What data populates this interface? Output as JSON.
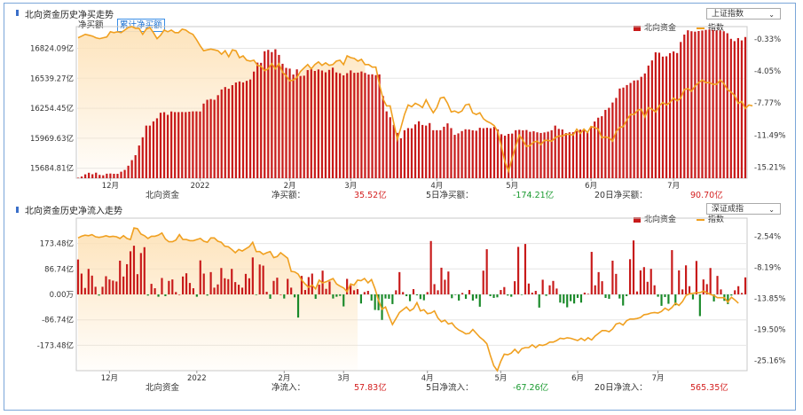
{
  "panel1": {
    "title": "北向资金历史净买走势",
    "tabs": [
      "净买额",
      "累计净买额"
    ],
    "active_tab": 1,
    "selector": "上证指数",
    "legend": [
      "北向资金",
      "指数"
    ],
    "stats": {
      "name": "北向资金",
      "l1": "净买额：",
      "v1": "35.52亿",
      "l2": "5日净买额：",
      "v2": "-174.21亿",
      "l3": "20日净买额：",
      "v3": "90.70亿"
    }
  },
  "panel2": {
    "title": "北向资金历史净流入走势",
    "selector": "深证成指",
    "legend": [
      "北向资金",
      "指数"
    ],
    "stats": {
      "name": "北向资金",
      "l1": "净流入：",
      "v1": "57.83亿",
      "l2": "5日净流入：",
      "v2": "-67.26亿",
      "l3": "20日净流入：",
      "v3": "565.35亿"
    }
  },
  "colors": {
    "bar": "#c81a1a",
    "bar_negative": "#1a8a2a",
    "index_line": "#f0a020",
    "area": "#fde2b8"
  },
  "chart_data": [
    {
      "type": "bar",
      "title": "北向资金历史净买走势",
      "series_name": "北向资金",
      "left_ticks": [
        "16824.09亿",
        "16539.27亿",
        "16254.45亿",
        "15969.63亿",
        "15684.81亿"
      ],
      "left_tick_values": [
        16824.09,
        16539.27,
        16254.45,
        15969.63,
        15684.81
      ],
      "right_ticks": [
        "-0.33%",
        "-4.05%",
        "-7.77%",
        "-11.49%",
        "-15.21%"
      ],
      "right_tick_values": [
        -0.33,
        -4.05,
        -7.77,
        -11.49,
        -15.21
      ],
      "x_labels": [
        "12月",
        "2022",
        "2月",
        "3月",
        "4月",
        "5月",
        "6月",
        "7月"
      ],
      "x_label_index": [
        9,
        34,
        59,
        76,
        100,
        121,
        143,
        166
      ],
      "ylim": [
        15590,
        17030
      ],
      "y2lim": [
        -16.5,
        1.1
      ],
      "bars": [
        15595,
        15606,
        15627,
        15642,
        15628,
        15643,
        15622,
        15618,
        15633,
        15635,
        15632,
        15632,
        15652,
        15669,
        15709,
        15762,
        15809,
        15901,
        15979,
        16090,
        16090,
        16130,
        16159,
        16212,
        16217,
        16192,
        16224,
        16218,
        16218,
        16219,
        16218,
        16222,
        16225,
        16225,
        16224,
        16299,
        16335,
        16342,
        16335,
        16379,
        16433,
        16456,
        16440,
        16474,
        16499,
        16509,
        16500,
        16515,
        16528,
        16603,
        16688,
        16686,
        16796,
        16809,
        16788,
        16815,
        16761,
        16677,
        16638,
        16631,
        16575,
        16624,
        16561,
        16564,
        16617,
        16626,
        16609,
        16623,
        16613,
        16596,
        16619,
        16640,
        16595,
        16587,
        16567,
        16588,
        16614,
        16591,
        16593,
        16604,
        16590,
        16575,
        16577,
        16569,
        16576,
        16371,
        16225,
        16169,
        16097,
        16021,
        15969,
        16046,
        16066,
        16064,
        16101,
        16131,
        16096,
        16090,
        16114,
        16046,
        16046,
        16046,
        16079,
        16111,
        16066,
        16002,
        16016,
        16038,
        16055,
        16053,
        16045,
        16041,
        16069,
        16065,
        16069,
        16065,
        16078,
        16054,
        16008,
        15994,
        16011,
        16014,
        16046,
        16050,
        16045,
        16048,
        16031,
        16036,
        16026,
        16020,
        16025,
        16032,
        16046,
        16090,
        16059,
        16053,
        16019,
        16026,
        16027,
        16038,
        16052,
        16046,
        16024,
        16081,
        16129,
        16165,
        16179,
        16239,
        16259,
        16309,
        16353,
        16442,
        16451,
        16475,
        16495,
        16518,
        16521,
        16553,
        16585,
        16660,
        16709,
        16786,
        16782,
        16745,
        16748,
        16778,
        16794,
        16779,
        16884,
        16954,
        16995,
        16986,
        16982,
        16988,
        16993,
        16999,
        17003,
        16998,
        16994,
        16993,
        16986,
        16967,
        16914,
        16892,
        16921,
        16899,
        16931
      ],
      "index_line": [
        -0.2,
        0.0,
        0.2,
        0.1,
        0.0,
        -0.2,
        -0.3,
        -0.2,
        -0.1,
        0.5,
        0.4,
        0.5,
        0.4,
        0.7,
        1.0,
        1.1,
        0.9,
        0.9,
        0.2,
        0.8,
        1.0,
        0.4,
        -0.3,
        0.1,
        0.7,
        0.5,
        0.7,
        0.4,
        0.4,
        0.8,
        0.7,
        0.4,
        0.2,
        -0.4,
        -1.1,
        -1.7,
        -1.6,
        -1.5,
        -1.6,
        -1.7,
        -2.1,
        -1.7,
        -2.4,
        -1.6,
        -1.7,
        -2.5,
        -2.3,
        -2.8,
        -2.9,
        -2.8,
        -3.4,
        -3.5,
        -4.0,
        -3.8,
        -3.2,
        -3.8,
        -3.2,
        -4.2,
        -4.6,
        -5.2,
        -5.1,
        -4.8,
        -4.1,
        -3.7,
        -3.3,
        -3.8,
        -3.3,
        -3.0,
        -3.4,
        -3.1,
        -3.4,
        -3.3,
        -2.9,
        -2.8,
        -3.3,
        -2.3,
        -2.5,
        -2.6,
        -2.9,
        -2.7,
        -3.3,
        -3.3,
        -3.6,
        -3.6,
        -5.6,
        -7.3,
        -8.1,
        -8.1,
        -10.1,
        -12.0,
        -10.6,
        -9.1,
        -8.0,
        -8.2,
        -7.8,
        -8.0,
        -8.3,
        -7.4,
        -8.2,
        -8.9,
        -8.3,
        -7.2,
        -7.1,
        -7.8,
        -8.8,
        -8.7,
        -8.9,
        -8.7,
        -8.0,
        -7.9,
        -8.9,
        -9.1,
        -8.9,
        -9.6,
        -9.9,
        -10.1,
        -10.4,
        -11.1,
        -12.8,
        -14.6,
        -15.7,
        -14.2,
        -12.8,
        -11.5,
        -12.1,
        -12.8,
        -12.7,
        -12.3,
        -12.2,
        -12.6,
        -12.1,
        -12.1,
        -12.2,
        -11.8,
        -11.6,
        -11.6,
        -11.4,
        -11.4,
        -11.5,
        -10.8,
        -11.3,
        -10.8,
        -11.2,
        -10.5,
        -10.6,
        -10.8,
        -11.8,
        -11.7,
        -11.8,
        -12.2,
        -11.1,
        -10.6,
        -10.5,
        -9.7,
        -9.1,
        -9.1,
        -8.6,
        -8.5,
        -9.4,
        -8.3,
        -8.5,
        -8.8,
        -8.1,
        -7.7,
        -8.0,
        -7.7,
        -7.2,
        -7.5,
        -7.2,
        -6.2,
        -6.1,
        -6.4,
        -5.8,
        -5.4,
        -5.1,
        -5.4,
        -5.4,
        -5.6,
        -5.6,
        -5.1,
        -5.5,
        -6.2,
        -6.5,
        -6.9,
        -7.8,
        -7.6,
        -8.4,
        -8.0,
        -8.1
      ]
    },
    {
      "type": "bar",
      "title": "北向资金历史净流入走势",
      "series_name": "北向资金",
      "left_ticks": [
        "173.48亿",
        "86.74亿",
        "0.00万",
        "-86.74亿",
        "-173.48亿"
      ],
      "left_tick_values": [
        173.48,
        86.74,
        0.0,
        -86.74,
        -173.48
      ],
      "right_ticks": [
        "-2.54%",
        "-8.19%",
        "-13.85%",
        "-19.50%",
        "-25.16%"
      ],
      "right_tick_values": [
        -2.54,
        -8.19,
        -13.85,
        -19.5,
        -25.16
      ],
      "x_labels": [
        "12月",
        "2022",
        "2月",
        "3月",
        "4月",
        "5月",
        "6月",
        "7月"
      ],
      "x_label_index": [
        9,
        34,
        59,
        76,
        100,
        121,
        143,
        166
      ],
      "ylim": [
        -260,
        260
      ],
      "y2lim": [
        -27.0,
        0.8
      ],
      "bars": [
        119,
        71,
        22,
        87,
        64,
        26,
        -4,
        26,
        62,
        51,
        47,
        44,
        115,
        61,
        103,
        147,
        166,
        69,
        141,
        161,
        -4,
        36,
        21,
        -8,
        56,
        -6,
        46,
        51,
        8,
        0,
        61,
        72,
        39,
        21,
        -8,
        116,
        71,
        -4,
        76,
        23,
        34,
        90,
        55,
        52,
        87,
        42,
        33,
        23,
        70,
        55,
        126,
        -2,
        102,
        98,
        9,
        -15,
        46,
        57,
        0,
        -14,
        53,
        23,
        -10,
        -79,
        63,
        15,
        59,
        71,
        -15,
        33,
        81,
        19,
        44,
        -14,
        -8,
        -5,
        -41,
        53,
        31,
        14,
        18,
        -31,
        8,
        12,
        -21,
        -53,
        -54,
        -87,
        -14,
        -15,
        -33,
        14,
        76,
        8,
        -6,
        -23,
        18,
        -3,
        -16,
        -20,
        8,
        182,
        35,
        14,
        91,
        50,
        78,
        -13,
        -2,
        -21,
        5,
        -15,
        15,
        -21,
        -14,
        -42,
        81,
        154,
        -6,
        -12,
        -10,
        15,
        25,
        -4,
        -8,
        45,
        162,
        -1,
        172,
        37,
        6,
        12,
        -45,
        50,
        -5,
        31,
        46,
        20,
        -28,
        -31,
        -44,
        -23,
        -31,
        -12,
        -28,
        6,
        2,
        145,
        31,
        76,
        45,
        -12,
        -15,
        115,
        70,
        -14,
        -38,
        -6,
        120,
        184,
        10,
        82,
        93,
        43,
        87,
        31,
        -8,
        -39,
        -9,
        -32,
        151,
        -37,
        82,
        17,
        99,
        28,
        -17,
        114,
        -74,
        51,
        35,
        90,
        -24,
        63,
        17,
        -22,
        -33,
        -4,
        14,
        28,
        5,
        58
      ],
      "index_line": [
        -2.8,
        -2.5,
        -2.3,
        -2.4,
        -2.2,
        -2.6,
        -2.7,
        -2.6,
        -2.4,
        -2.6,
        -2.5,
        -2.6,
        -2.9,
        -2.4,
        -2.9,
        -3.1,
        -1.0,
        -1.1,
        -2.1,
        -2.4,
        -2.9,
        -2.5,
        -2.5,
        -2.3,
        -1.9,
        -3.0,
        -3.5,
        -3.5,
        -3.2,
        -2.2,
        -3.1,
        -3.1,
        -3.3,
        -3.3,
        -3.1,
        -2.9,
        -3.4,
        -3.6,
        -2.8,
        -2.8,
        -3.4,
        -3.6,
        -4.3,
        -4.4,
        -4.9,
        -5.5,
        -4.9,
        -5.2,
        -4.8,
        -4.4,
        -3.6,
        -5.3,
        -5.3,
        -5.8,
        -5.5,
        -5.3,
        -6.4,
        -6.2,
        -5.5,
        -6.0,
        -6.5,
        -8.9,
        -9.0,
        -9.4,
        -10.5,
        -11.2,
        -11.8,
        -11.4,
        -12.1,
        -10.5,
        -11.0,
        -10.8,
        -10.5,
        -10.2,
        -11.2,
        -11.6,
        -11.9,
        -12.6,
        -11.2,
        -11.4,
        -10.5,
        -10.6,
        -10.2,
        -11.0,
        -10.4,
        -12.1,
        -14.2,
        -15.8,
        -15.4,
        -17.1,
        -18.6,
        -17.5,
        -16.4,
        -15.9,
        -15.4,
        -16.1,
        -15.7,
        -14.6,
        -16.1,
        -15.9,
        -16.6,
        -16.5,
        -16.1,
        -17.4,
        -18.1,
        -17.8,
        -18.5,
        -18.3,
        -19.1,
        -19.6,
        -19.9,
        -20.3,
        -20.2,
        -19.5,
        -20.2,
        -20.9,
        -21.4,
        -22.1,
        -24.2,
        -26.1,
        -27.0,
        -25.3,
        -24.0,
        -24.1,
        -23.8,
        -23.1,
        -23.8,
        -23.0,
        -22.8,
        -22.8,
        -22.3,
        -22.8,
        -22.3,
        -22.4,
        -22.2,
        -21.8,
        -21.8,
        -21.5,
        -21.1,
        -21.2,
        -21.0,
        -21.1,
        -21.3,
        -21.5,
        -21.1,
        -21.5,
        -21.0,
        -21.4,
        -20.7,
        -20.2,
        -19.7,
        -19.7,
        -19.9,
        -19.4,
        -18.5,
        -18.3,
        -18.7,
        -17.9,
        -17.6,
        -17.6,
        -17.5,
        -17.3,
        -16.8,
        -16.7,
        -16.5,
        -16.4,
        -16.5,
        -16.2,
        -15.6,
        -16.0,
        -15.5,
        -14.7,
        -15.1,
        -14.4,
        -13.3,
        -13.0,
        -12.9,
        -12.8,
        -12.8,
        -12.5,
        -12.8,
        -13.1,
        -13.3,
        -13.7,
        -13.7,
        -13.7,
        -14.5,
        -13.6,
        -14.1,
        -14.7
      ]
    }
  ]
}
